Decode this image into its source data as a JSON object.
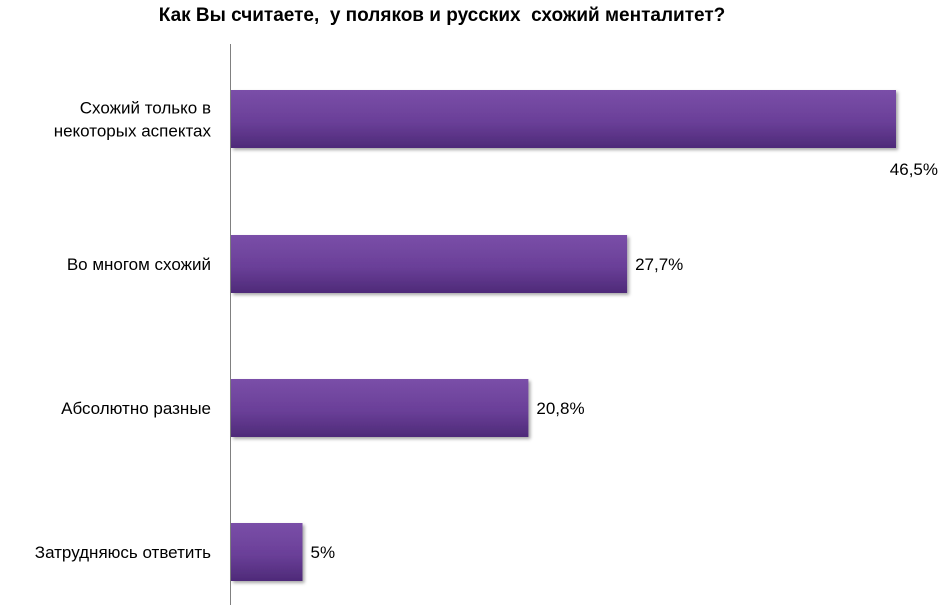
{
  "chart_data": {
    "type": "bar",
    "orientation": "horizontal",
    "title": "Как Вы считаете,  у поляков и русских  схожий менталитет?",
    "categories": [
      [
        "Схожий только в",
        "некоторых аспектах"
      ],
      [
        "Во многом схожий"
      ],
      [
        "Абсолютно разные"
      ],
      [
        "Затрудняюсь ответить"
      ]
    ],
    "values": [
      46.5,
      27.7,
      20.8,
      5
    ],
    "value_labels": [
      "46,5%",
      "27,7%",
      "20,8%",
      "5%"
    ],
    "unit": "%",
    "xlim": [
      0,
      50
    ],
    "grid": false,
    "legend": "none",
    "colors": {
      "bar_top": "#7a4fa8",
      "bar_mid": "#6a3f98",
      "bar_bottom": "#4e2a78",
      "axis": "#808080"
    }
  }
}
